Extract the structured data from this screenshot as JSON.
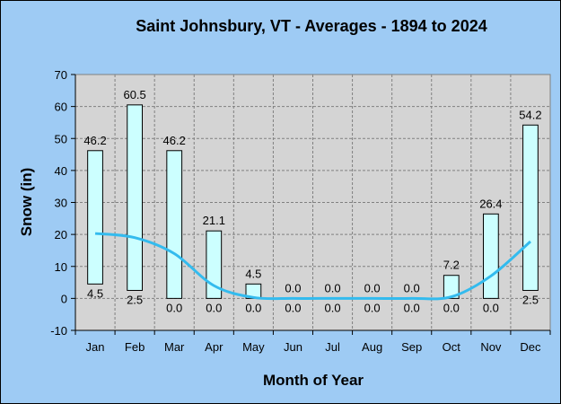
{
  "chart_data": {
    "type": "bar",
    "title": "Saint Johnsbury, VT - Averages - 1894 to 2024",
    "xlabel": "Month of Year",
    "ylabel": "Snow (in)",
    "ylim": [
      -10,
      70
    ],
    "yticks": [
      -10,
      0,
      10,
      20,
      30,
      40,
      50,
      60,
      70
    ],
    "grid": true,
    "categories": [
      "Jan",
      "Feb",
      "Mar",
      "Apr",
      "May",
      "Jun",
      "Jul",
      "Aug",
      "Sep",
      "Oct",
      "Nov",
      "Dec"
    ],
    "series": [
      {
        "name": "",
        "type": "floating-bar",
        "high": [
          46.2,
          60.5,
          46.2,
          21.1,
          4.5,
          0.0,
          0.0,
          0.0,
          0.0,
          7.2,
          26.4,
          54.2
        ],
        "low": [
          4.5,
          2.5,
          0.0,
          0.0,
          0.0,
          0.0,
          0.0,
          0.0,
          0.0,
          0.0,
          0.0,
          2.5
        ],
        "high_labels": [
          "46.2",
          "60.5",
          "46.2",
          "21.1",
          "4.5",
          "0.0",
          "0.0",
          "0.0",
          "0.0",
          "7.2",
          "26.4",
          "54.2"
        ],
        "low_labels": [
          "4.5",
          "2.5",
          "0.0",
          "0.0",
          "0.0",
          "0.0",
          "0.0",
          "0.0",
          "0.0",
          "0.0",
          "0.0",
          "2.5"
        ]
      },
      {
        "name": "",
        "type": "line",
        "values": [
          20.3,
          19.0,
          14.0,
          4.0,
          0.3,
          0.0,
          0.0,
          0.0,
          0.0,
          0.5,
          7.0,
          17.8
        ]
      }
    ],
    "colors": {
      "background": "#9ecbf4",
      "plot_area": "#d4d4d4",
      "bar_fill": "#ccffff",
      "bar_stroke": "#000000",
      "line": "#33bbee",
      "grid": "#808080"
    }
  }
}
